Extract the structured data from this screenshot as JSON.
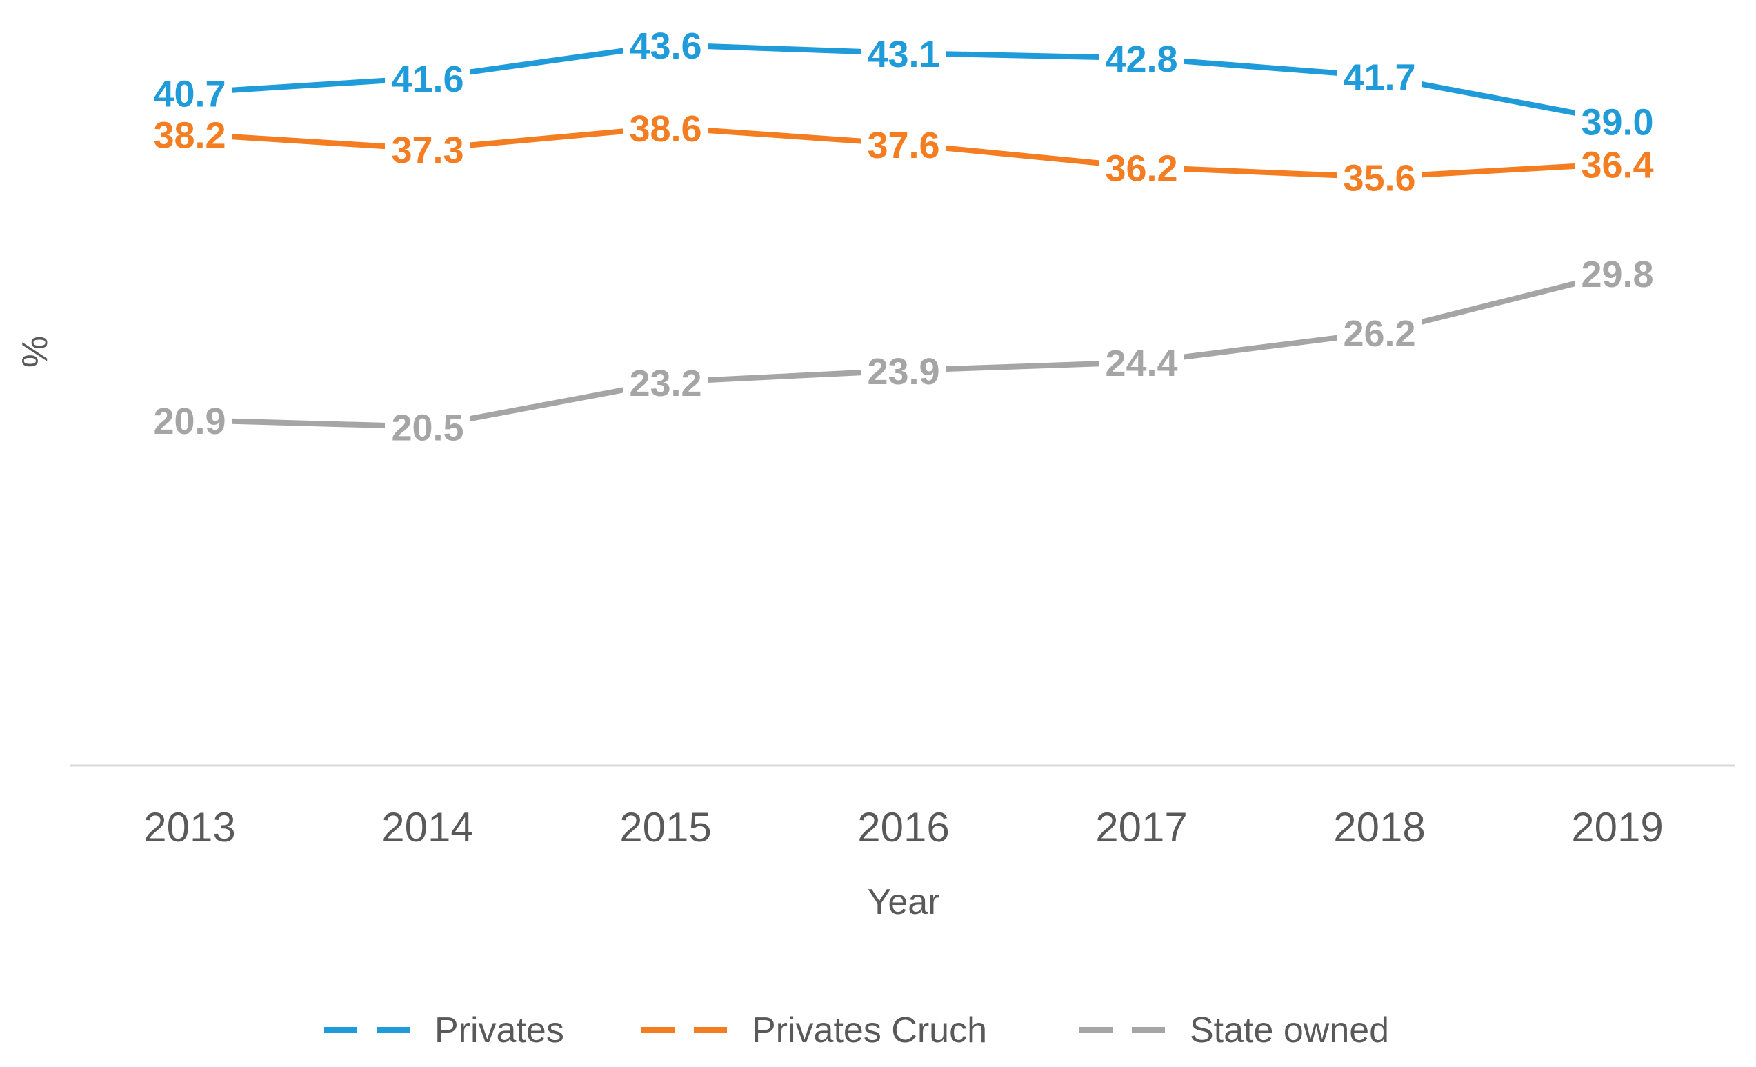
{
  "chart_data": {
    "type": "line",
    "title": "",
    "xlabel": "Year",
    "ylabel": "%",
    "categories": [
      "2013",
      "2014",
      "2015",
      "2016",
      "2017",
      "2018",
      "2019"
    ],
    "ylim": [
      0,
      45
    ],
    "grid": false,
    "legend_position": "bottom",
    "series": [
      {
        "name": "Privates",
        "color": "#1f9bd9",
        "values": [
          40.7,
          41.6,
          43.6,
          43.1,
          42.8,
          41.7,
          39.0
        ],
        "labels": [
          "40.7",
          "41.6",
          "43.6",
          "43.1",
          "42.8",
          "41.7",
          "39.0"
        ]
      },
      {
        "name": "Privates Cruch",
        "color": "#f47d22",
        "values": [
          38.2,
          37.3,
          38.6,
          37.6,
          36.2,
          35.6,
          36.4
        ],
        "labels": [
          "38.2",
          "37.3",
          "38.6",
          "37.6",
          "36.2",
          "35.6",
          "36.4"
        ]
      },
      {
        "name": "State owned",
        "color": "#a5a5a5",
        "values": [
          20.9,
          20.5,
          23.2,
          23.9,
          24.4,
          26.2,
          29.8
        ],
        "labels": [
          "20.9",
          "20.5",
          "23.2",
          "23.9",
          "24.4",
          "26.2",
          "29.8"
        ]
      }
    ]
  }
}
